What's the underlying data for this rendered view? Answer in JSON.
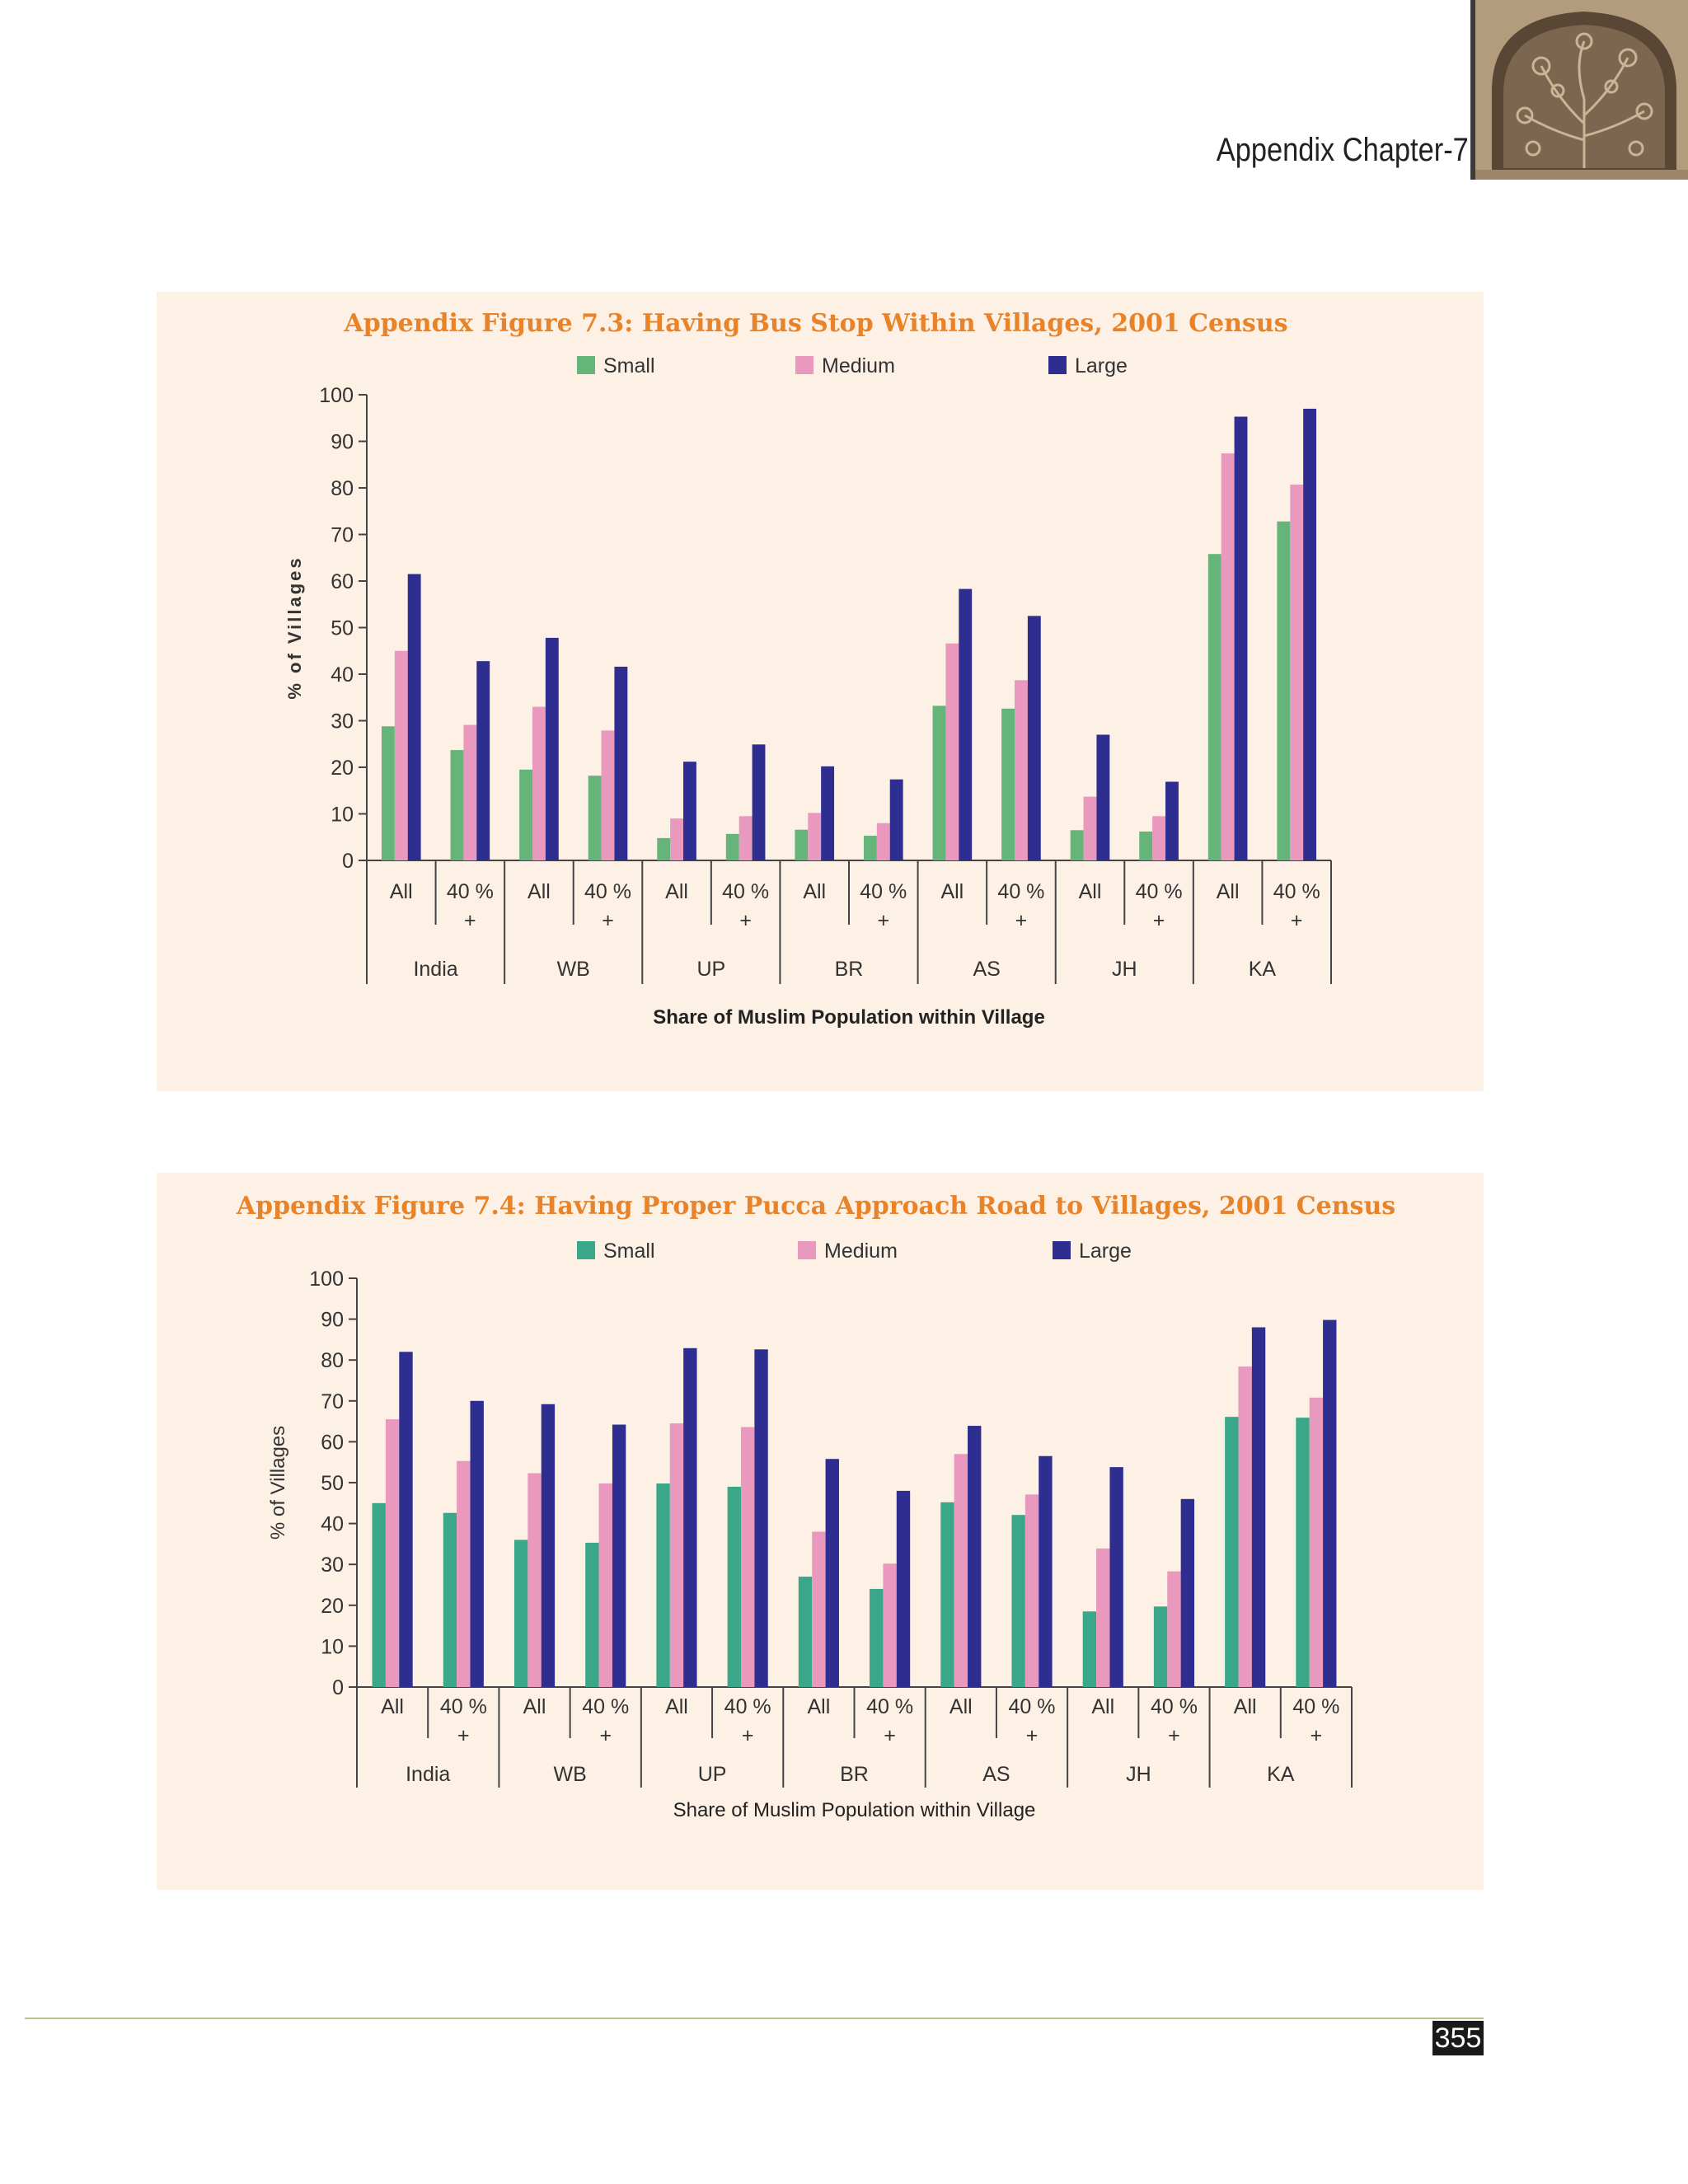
{
  "header": {
    "chapter": "Appendix Chapter-7"
  },
  "page_number": "355",
  "colors": {
    "small_fig1": "#65b57a",
    "small_fig2": "#3aa888",
    "medium": "#e999bd",
    "large": "#2e2e90",
    "title": "#e8832a",
    "panel_bg": "#fdf0e4"
  },
  "chart_data": [
    {
      "type": "bar",
      "title": "Appendix Figure 7.3: Having Bus Stop Within Villages, 2001 Census",
      "ylabel": "% of Villages",
      "xlabel": "Share of Muslim Population within Village",
      "ylim": [
        0,
        100
      ],
      "yticks": [
        0,
        10,
        20,
        30,
        40,
        50,
        60,
        70,
        80,
        90,
        100
      ],
      "legend_position": "top",
      "groups": [
        "India",
        "WB",
        "UP",
        "BR",
        "AS",
        "JH",
        "KA"
      ],
      "subcategories": [
        "All",
        "40 %\n+"
      ],
      "series": [
        {
          "name": "Small",
          "values": [
            28.8,
            23.7,
            19.5,
            18.2,
            4.8,
            5.7,
            6.6,
            5.3,
            33.2,
            32.6,
            6.5,
            6.2,
            65.8,
            72.8
          ]
        },
        {
          "name": "Medium",
          "values": [
            45.0,
            29.1,
            33.0,
            27.9,
            9.0,
            9.5,
            10.2,
            8.0,
            46.6,
            38.7,
            13.7,
            9.5,
            87.4,
            80.7
          ]
        },
        {
          "name": "Large",
          "values": [
            61.5,
            42.8,
            47.8,
            41.6,
            21.2,
            24.9,
            20.2,
            17.4,
            58.3,
            52.5,
            27.0,
            16.9,
            95.3,
            97.0
          ]
        }
      ]
    },
    {
      "type": "bar",
      "title": "Appendix Figure 7.4: Having Proper Pucca Approach Road to Villages, 2001 Census",
      "ylabel": "% of Villages",
      "xlabel": "Share of Muslim Population within Village",
      "ylim": [
        0,
        100
      ],
      "yticks": [
        0,
        10,
        20,
        30,
        40,
        50,
        60,
        70,
        80,
        90,
        100
      ],
      "legend_position": "top",
      "groups": [
        "India",
        "WB",
        "UP",
        "BR",
        "AS",
        "JH",
        "KA"
      ],
      "subcategories": [
        "All",
        "40 %\n+"
      ],
      "series": [
        {
          "name": "Small",
          "values": [
            45.0,
            42.6,
            36.0,
            35.3,
            49.8,
            49.0,
            27.0,
            24.0,
            45.2,
            42.1,
            18.5,
            19.7,
            66.1,
            65.9
          ]
        },
        {
          "name": "Medium",
          "values": [
            65.5,
            55.3,
            52.3,
            49.8,
            64.5,
            63.6,
            38.0,
            30.2,
            57.0,
            47.1,
            33.9,
            28.3,
            78.4,
            70.8
          ]
        },
        {
          "name": "Large",
          "values": [
            82.0,
            70.0,
            69.2,
            64.2,
            82.9,
            82.6,
            55.8,
            48.0,
            63.9,
            56.5,
            53.8,
            46.0,
            88.0,
            89.8
          ]
        }
      ]
    }
  ]
}
